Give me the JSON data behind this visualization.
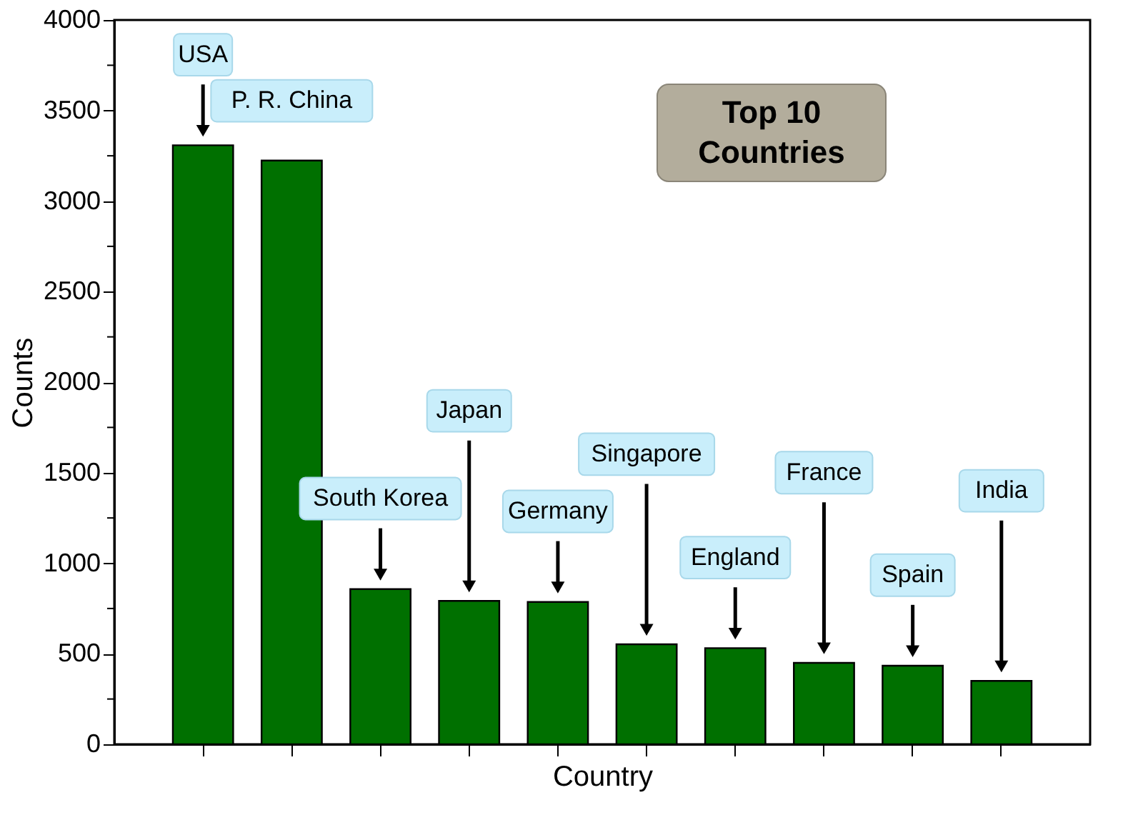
{
  "chart_data": {
    "type": "bar",
    "title": "Top 10 Countries",
    "xlabel": "Country",
    "ylabel": "Counts",
    "categories": [
      "USA",
      "P. R. China",
      "South Korea",
      "Japan",
      "Germany",
      "Singapore",
      "England",
      "France",
      "Spain",
      "India"
    ],
    "values": [
      3308,
      3224,
      857,
      792,
      786,
      552,
      531,
      450,
      434,
      350
    ],
    "color": "#007000",
    "ylim": [
      0,
      4000
    ],
    "yticks": [
      0,
      {
        "value": 250,
        "label": null
      },
      500,
      {
        "value": 750,
        "label": null
      },
      1000,
      {
        "value": 1250,
        "label": null
      },
      1500,
      {
        "value": 1750,
        "label": null
      },
      2000,
      {
        "value": 2250,
        "label": null
      },
      2500,
      {
        "value": 2750,
        "label": null
      },
      3000,
      {
        "value": 3250,
        "label": null
      },
      3500,
      {
        "value": 3750,
        "label": null
      },
      4000
    ],
    "tick_labels": "y",
    "grid": false
  }
}
